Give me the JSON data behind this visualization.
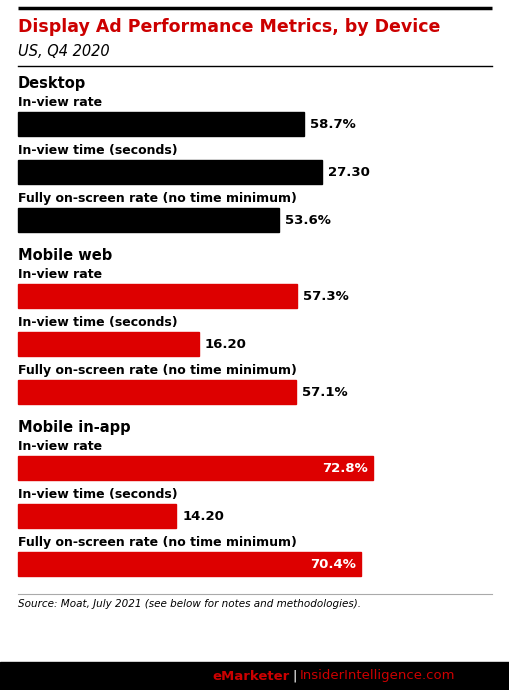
{
  "title": "Display Ad Performance Metrics, by Device",
  "subtitle": "US, Q4 2020",
  "title_color": "#cc0000",
  "subtitle_color": "#000000",
  "source": "Source: Moat, July 2021 (see below for notes and methodologies).",
  "footer_left": "eMarketer",
  "footer_right": "InsiderIntelligence.com",
  "footer_separator": " | ",
  "background_color": "#ffffff",
  "sections": [
    {
      "section_label": "Desktop",
      "color": "#000000",
      "metrics": [
        {
          "label": "In-view rate",
          "value": 58.7,
          "display": "58.7%",
          "label_inside": false,
          "is_time": false
        },
        {
          "label": "In-view time (seconds)",
          "value": 27.3,
          "display": "27.30",
          "label_inside": false,
          "is_time": true
        },
        {
          "label": "Fully on-screen rate (no time minimum)",
          "value": 53.6,
          "display": "53.6%",
          "label_inside": false,
          "is_time": false
        }
      ]
    },
    {
      "section_label": "Mobile web",
      "color": "#dd0000",
      "metrics": [
        {
          "label": "In-view rate",
          "value": 57.3,
          "display": "57.3%",
          "label_inside": false,
          "is_time": false
        },
        {
          "label": "In-view time (seconds)",
          "value": 16.2,
          "display": "16.20",
          "label_inside": false,
          "is_time": true
        },
        {
          "label": "Fully on-screen rate (no time minimum)",
          "value": 57.1,
          "display": "57.1%",
          "label_inside": false,
          "is_time": false
        }
      ]
    },
    {
      "section_label": "Mobile in-app",
      "color": "#dd0000",
      "metrics": [
        {
          "label": "In-view rate",
          "value": 72.8,
          "display": "72.8%",
          "label_inside": true,
          "is_time": false
        },
        {
          "label": "In-view time (seconds)",
          "value": 14.2,
          "display": "14.20",
          "label_inside": false,
          "is_time": true
        },
        {
          "label": "Fully on-screen rate (no time minimum)",
          "value": 70.4,
          "display": "70.4%",
          "label_inside": true,
          "is_time": false
        }
      ]
    }
  ],
  "pct_max": 80.0,
  "time_max": 35.0
}
